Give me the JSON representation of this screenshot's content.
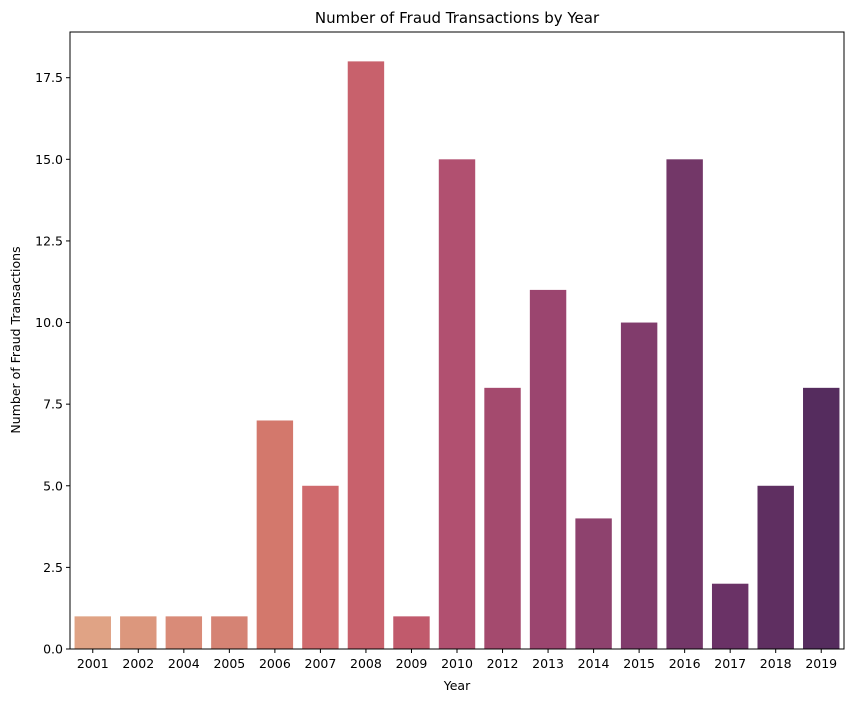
{
  "chart_data": {
    "type": "bar",
    "title": "Number of Fraud Transactions by Year",
    "xlabel": "Year",
    "ylabel": "Number of Fraud Transactions",
    "categories": [
      "2001",
      "2002",
      "2004",
      "2005",
      "2006",
      "2007",
      "2008",
      "2009",
      "2010",
      "2012",
      "2013",
      "2014",
      "2015",
      "2016",
      "2017",
      "2018",
      "2019"
    ],
    "values": [
      1,
      1,
      1,
      1,
      7,
      5,
      18,
      1,
      15,
      8,
      11,
      4,
      10,
      15,
      2,
      5,
      8
    ],
    "colors": [
      "#e0a385",
      "#dc977d",
      "#d98b78",
      "#d58374",
      "#d3786c",
      "#cf6a6d",
      "#c8616c",
      "#c15a6c",
      "#b15070",
      "#a44a6e",
      "#9b456f",
      "#8e426e",
      "#813c6c",
      "#733768",
      "#6a3266",
      "#5f2f61",
      "#552c5e"
    ],
    "yticks": [
      "0.0",
      "2.5",
      "5.0",
      "7.5",
      "10.0",
      "12.5",
      "15.0",
      "17.5"
    ],
    "ylim": [
      0,
      18.9
    ],
    "grid": false,
    "legend": "none"
  }
}
